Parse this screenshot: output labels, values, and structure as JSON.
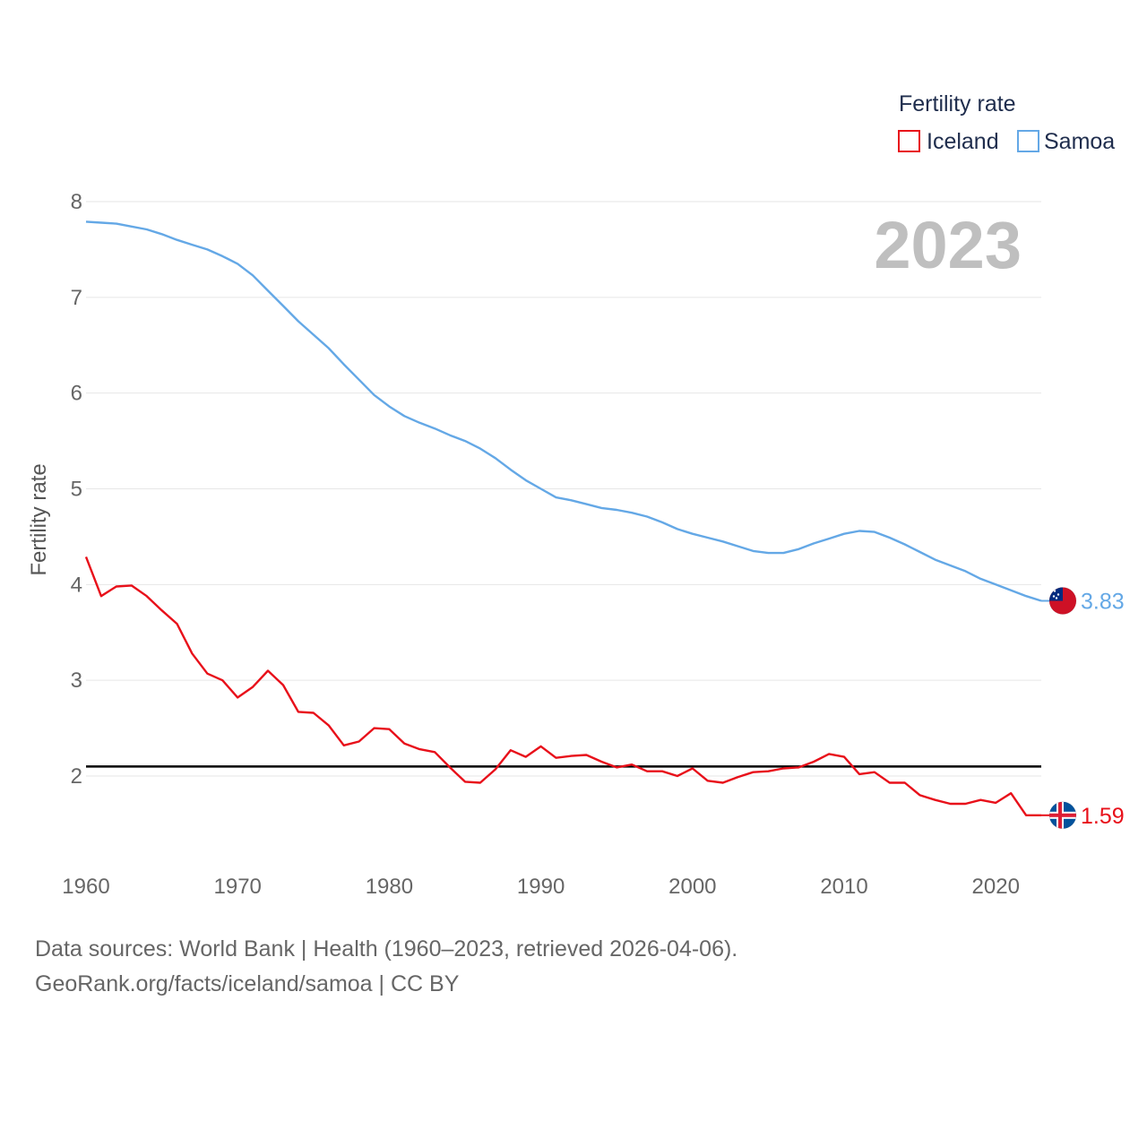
{
  "chart_data": {
    "type": "line",
    "current_year": "2023",
    "ylabel": "Fertility rate",
    "xlabel": "",
    "xlim": [
      1960,
      2023
    ],
    "ylim": [
      1.0,
      8.1
    ],
    "x_ticks": [
      1960,
      1970,
      1980,
      1990,
      2000,
      2010,
      2020
    ],
    "y_ticks": [
      2,
      3,
      4,
      5,
      6,
      7,
      8
    ],
    "reference_line": 2.1,
    "legend": {
      "title": "Fertility rate",
      "position": "top-right"
    },
    "x": [
      1960,
      1961,
      1962,
      1963,
      1964,
      1965,
      1966,
      1967,
      1968,
      1969,
      1970,
      1971,
      1972,
      1973,
      1974,
      1975,
      1976,
      1977,
      1978,
      1979,
      1980,
      1981,
      1982,
      1983,
      1984,
      1985,
      1986,
      1987,
      1988,
      1989,
      1990,
      1991,
      1992,
      1993,
      1994,
      1995,
      1996,
      1997,
      1998,
      1999,
      2000,
      2001,
      2002,
      2003,
      2004,
      2005,
      2006,
      2007,
      2008,
      2009,
      2010,
      2011,
      2012,
      2013,
      2014,
      2015,
      2016,
      2017,
      2018,
      2019,
      2020,
      2021,
      2022,
      2023
    ],
    "series": [
      {
        "name": "Iceland",
        "color": "#e8101a",
        "end_label": "1.59",
        "flag": "iceland-flag",
        "values": [
          4.29,
          3.88,
          3.98,
          3.99,
          3.88,
          3.73,
          3.59,
          3.28,
          3.07,
          3.0,
          2.82,
          2.93,
          3.1,
          2.95,
          2.67,
          2.66,
          2.53,
          2.32,
          2.36,
          2.5,
          2.49,
          2.34,
          2.28,
          2.25,
          2.09,
          1.94,
          1.93,
          2.07,
          2.27,
          2.2,
          2.31,
          2.19,
          2.21,
          2.22,
          2.15,
          2.09,
          2.12,
          2.05,
          2.05,
          2.0,
          2.08,
          1.95,
          1.93,
          1.99,
          2.04,
          2.05,
          2.08,
          2.09,
          2.15,
          2.23,
          2.2,
          2.02,
          2.04,
          1.93,
          1.93,
          1.8,
          1.75,
          1.71,
          1.71,
          1.75,
          1.72,
          1.82,
          1.59,
          1.59
        ]
      },
      {
        "name": "Samoa",
        "color": "#64a8e6",
        "end_label": "3.83",
        "flag": "samoa-flag",
        "values": [
          7.79,
          7.78,
          7.77,
          7.74,
          7.71,
          7.66,
          7.6,
          7.55,
          7.5,
          7.43,
          7.35,
          7.23,
          7.07,
          6.91,
          6.75,
          6.61,
          6.47,
          6.3,
          6.14,
          5.98,
          5.86,
          5.76,
          5.69,
          5.63,
          5.56,
          5.5,
          5.42,
          5.32,
          5.2,
          5.09,
          5.0,
          4.91,
          4.88,
          4.84,
          4.8,
          4.78,
          4.75,
          4.71,
          4.65,
          4.58,
          4.53,
          4.49,
          4.45,
          4.4,
          4.35,
          4.33,
          4.33,
          4.37,
          4.43,
          4.48,
          4.53,
          4.56,
          4.55,
          4.49,
          4.42,
          4.34,
          4.26,
          4.2,
          4.14,
          4.06,
          4.0,
          3.94,
          3.88,
          3.83
        ]
      }
    ]
  },
  "footer": {
    "line1": "Data sources: World Bank | Health (1960–2023, retrieved 2026-04-06).",
    "line2": "GeoRank.org/facts/iceland/samoa | CC BY"
  }
}
